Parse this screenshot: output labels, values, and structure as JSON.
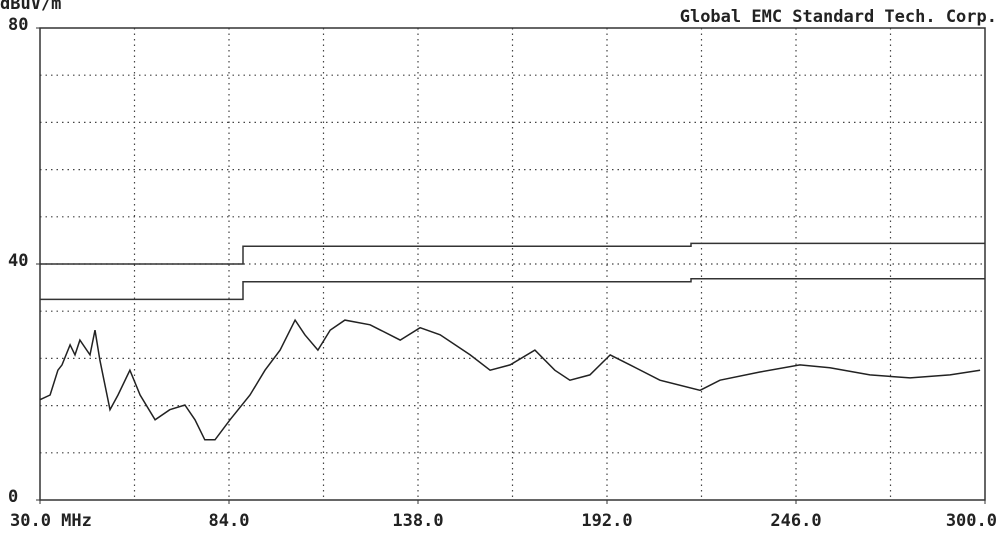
{
  "chart_data": {
    "type": "line",
    "title": "Global EMC Standard Tech. Corp.",
    "y_label": "dBuV/m",
    "xlim": [
      30,
      300
    ],
    "ylim": [
      0,
      80
    ],
    "xticks": [
      {
        "value": 30,
        "label": "30.0 MHz"
      },
      {
        "value": 84,
        "label": "84.0"
      },
      {
        "value": 138,
        "label": "138.0"
      },
      {
        "value": 192,
        "label": "192.0"
      },
      {
        "value": 246,
        "label": "246.0"
      },
      {
        "value": 300,
        "label": "300.0"
      }
    ],
    "yticks": [
      0,
      40,
      80
    ],
    "grid": true,
    "series": [
      {
        "color": "#333333",
        "x": [
          30,
          88,
          88,
          216,
          216,
          300
        ],
        "values": [
          40,
          40,
          43,
          43,
          43.5,
          43.5
        ]
      },
      {
        "color": "#333333",
        "x": [
          30,
          88,
          88,
          216,
          216,
          300
        ],
        "values": [
          34,
          34,
          37,
          37,
          37.5,
          37.5
        ]
      },
      {
        "color": "#222222",
        "x": [
          30,
          32.9,
          35.1,
          36.3,
          38.6,
          40,
          41.4,
          44.3,
          45.7,
          47.1,
          50,
          52.3,
          55.7,
          58.6,
          62.9,
          67.1,
          71.4,
          74.3,
          77.1,
          80,
          84.3,
          90,
          94.3,
          98.6,
          102.9,
          105.7,
          109.4,
          112.9,
          117.1,
          124.3,
          132.9,
          138.6,
          144.3,
          152.9,
          158.6,
          164.3,
          171.4,
          177.1,
          181.4,
          187.1,
          192.9,
          198.6,
          207.1,
          218.6,
          224.3,
          235.7,
          247.1,
          255.7,
          267.1,
          278.6,
          290,
          298.6
        ],
        "values": [
          17,
          17.8,
          22,
          22.9,
          26.3,
          24.6,
          27.1,
          24.6,
          28.8,
          23.7,
          15.3,
          17.8,
          22,
          17.8,
          13.6,
          15.3,
          16.1,
          13.6,
          10.2,
          10.2,
          13.6,
          17.8,
          22,
          25.4,
          30.5,
          28,
          25.4,
          28.8,
          30.5,
          29.7,
          27.1,
          29.2,
          28,
          24.6,
          22,
          22.9,
          25.4,
          22,
          20.3,
          21.2,
          24.6,
          22.9,
          20.3,
          18.6,
          20.3,
          21.7,
          22.9,
          22.4,
          21.2,
          20.7,
          21.2,
          22
        ]
      }
    ]
  }
}
